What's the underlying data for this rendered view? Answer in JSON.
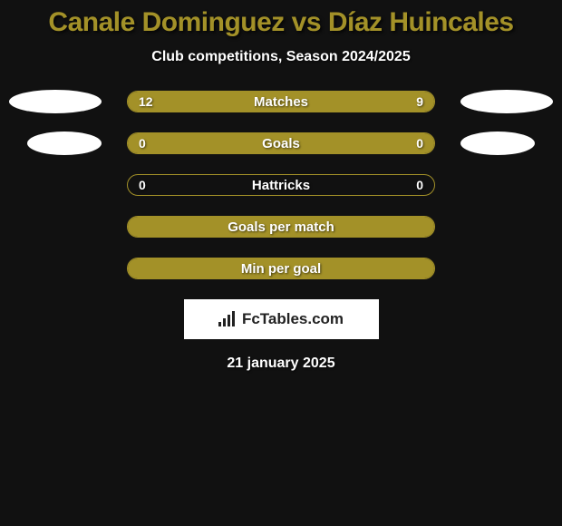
{
  "title": "Canale Dominguez vs Díaz Huincales",
  "subtitle": "Club competitions, Season 2024/2025",
  "colors": {
    "background": "#111111",
    "accent": "#a39128",
    "white": "#ffffff"
  },
  "stats": [
    {
      "label": "Matches",
      "left_value": "12",
      "right_value": "9",
      "left_fill_pct": 57,
      "right_fill_pct": 43,
      "show_avatars": true,
      "full_fill": true
    },
    {
      "label": "Goals",
      "left_value": "0",
      "right_value": "0",
      "left_fill_pct": 50,
      "right_fill_pct": 50,
      "show_avatars": true,
      "avatars_small": true,
      "full_fill": true
    },
    {
      "label": "Hattricks",
      "left_value": "0",
      "right_value": "0",
      "left_fill_pct": 0,
      "right_fill_pct": 0,
      "show_avatars": false,
      "full_fill": false
    },
    {
      "label": "Goals per match",
      "left_value": "",
      "right_value": "",
      "left_fill_pct": 0,
      "right_fill_pct": 0,
      "show_avatars": false,
      "full_fill": true
    },
    {
      "label": "Min per goal",
      "left_value": "",
      "right_value": "",
      "left_fill_pct": 0,
      "right_fill_pct": 0,
      "show_avatars": false,
      "full_fill": true
    }
  ],
  "logo_text": "FcTables.com",
  "date": "21 january 2025"
}
